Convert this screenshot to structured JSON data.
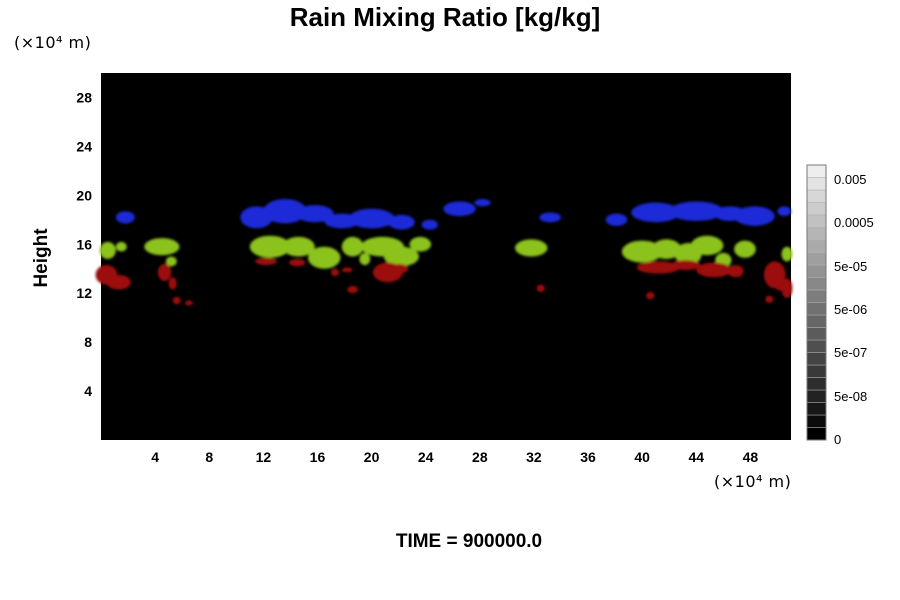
{
  "chart_data": {
    "type": "heatmap",
    "title": "Rain Mixing Ratio [kg/kg]",
    "ylabel": "Height",
    "y_unit": "(×10⁴ m)",
    "x_unit": "(×10⁴ m)",
    "footer": "TIME = 900000.0",
    "xlim": [
      0,
      51
    ],
    "ylim": [
      0,
      30
    ],
    "x_ticks": [
      4,
      8,
      12,
      16,
      20,
      24,
      28,
      32,
      36,
      40,
      44,
      48
    ],
    "y_ticks": [
      4,
      8,
      12,
      16,
      20,
      24,
      28
    ],
    "background": "#000000",
    "colorbar": {
      "levels": 22,
      "labels": [
        "0.005",
        "0.0005",
        "5e-05",
        "5e-06",
        "5e-07",
        "5e-08",
        "0"
      ],
      "colors": [
        "#000000",
        "#ffffff"
      ]
    },
    "layers": [
      {
        "color": "#1f2ad8",
        "blobs": [
          [
            1.8,
            18.2,
            0.7,
            0.5
          ],
          [
            11.5,
            18.2,
            1.2,
            0.9
          ],
          [
            13.6,
            18.7,
            1.6,
            1.0
          ],
          [
            15.8,
            18.5,
            1.4,
            0.7
          ],
          [
            17.8,
            17.9,
            1.3,
            0.6
          ],
          [
            20.0,
            18.1,
            1.7,
            0.8
          ],
          [
            22.2,
            17.8,
            1.0,
            0.6
          ],
          [
            24.3,
            17.6,
            0.6,
            0.4
          ],
          [
            26.5,
            18.9,
            1.2,
            0.6
          ],
          [
            28.2,
            19.4,
            0.6,
            0.3
          ],
          [
            33.2,
            18.2,
            0.8,
            0.4
          ],
          [
            38.1,
            18.0,
            0.8,
            0.5
          ],
          [
            41.0,
            18.6,
            1.8,
            0.8
          ],
          [
            44.0,
            18.7,
            2.0,
            0.8
          ],
          [
            46.5,
            18.5,
            1.2,
            0.6
          ],
          [
            48.3,
            18.3,
            1.5,
            0.8
          ],
          [
            50.5,
            18.7,
            0.5,
            0.4
          ]
        ]
      },
      {
        "color": "#8cc21e",
        "blobs": [
          [
            0.5,
            15.5,
            0.6,
            0.7
          ],
          [
            1.5,
            15.8,
            0.4,
            0.4
          ],
          [
            4.5,
            15.8,
            1.3,
            0.7
          ],
          [
            5.2,
            14.6,
            0.4,
            0.4
          ],
          [
            12.5,
            15.8,
            1.5,
            0.9
          ],
          [
            14.6,
            15.8,
            1.2,
            0.8
          ],
          [
            16.5,
            14.9,
            1.2,
            0.9
          ],
          [
            18.6,
            15.8,
            0.8,
            0.8
          ],
          [
            19.5,
            14.8,
            0.4,
            0.5
          ],
          [
            20.8,
            15.8,
            1.6,
            0.8
          ],
          [
            22.2,
            15.0,
            1.3,
            0.8
          ],
          [
            23.6,
            16.0,
            0.8,
            0.6
          ],
          [
            31.8,
            15.7,
            1.2,
            0.7
          ],
          [
            40.0,
            15.4,
            1.5,
            0.9
          ],
          [
            41.8,
            15.6,
            1.1,
            0.8
          ],
          [
            43.4,
            15.2,
            1.0,
            0.9
          ],
          [
            44.8,
            15.9,
            1.2,
            0.8
          ],
          [
            46.0,
            14.7,
            0.6,
            0.6
          ],
          [
            47.6,
            15.6,
            0.8,
            0.7
          ],
          [
            50.7,
            15.2,
            0.4,
            0.6
          ]
        ]
      },
      {
        "color": "#9c0f0b",
        "blobs": [
          [
            0.4,
            13.5,
            0.8,
            0.8
          ],
          [
            1.3,
            12.9,
            0.9,
            0.6
          ],
          [
            4.7,
            13.7,
            0.5,
            0.7
          ],
          [
            5.3,
            12.8,
            0.3,
            0.5
          ],
          [
            5.6,
            11.4,
            0.3,
            0.3
          ],
          [
            6.5,
            11.2,
            0.3,
            0.2
          ],
          [
            12.2,
            14.6,
            0.8,
            0.3
          ],
          [
            14.5,
            14.5,
            0.6,
            0.3
          ],
          [
            17.3,
            13.7,
            0.3,
            0.3
          ],
          [
            18.2,
            13.9,
            0.4,
            0.2
          ],
          [
            18.6,
            12.3,
            0.4,
            0.3
          ],
          [
            21.2,
            13.7,
            1.1,
            0.8
          ],
          [
            22.0,
            14.0,
            0.7,
            0.4
          ],
          [
            32.5,
            12.4,
            0.3,
            0.3
          ],
          [
            41.2,
            14.1,
            1.6,
            0.5
          ],
          [
            40.6,
            11.8,
            0.3,
            0.3
          ],
          [
            43.2,
            14.3,
            1.1,
            0.4
          ],
          [
            45.3,
            13.9,
            1.3,
            0.6
          ],
          [
            46.9,
            13.8,
            0.6,
            0.5
          ],
          [
            49.8,
            13.5,
            0.8,
            1.1
          ],
          [
            50.7,
            12.4,
            0.4,
            0.8
          ],
          [
            49.4,
            11.5,
            0.3,
            0.3
          ],
          [
            50.2,
            12.7,
            0.4,
            0.5
          ]
        ]
      }
    ]
  }
}
